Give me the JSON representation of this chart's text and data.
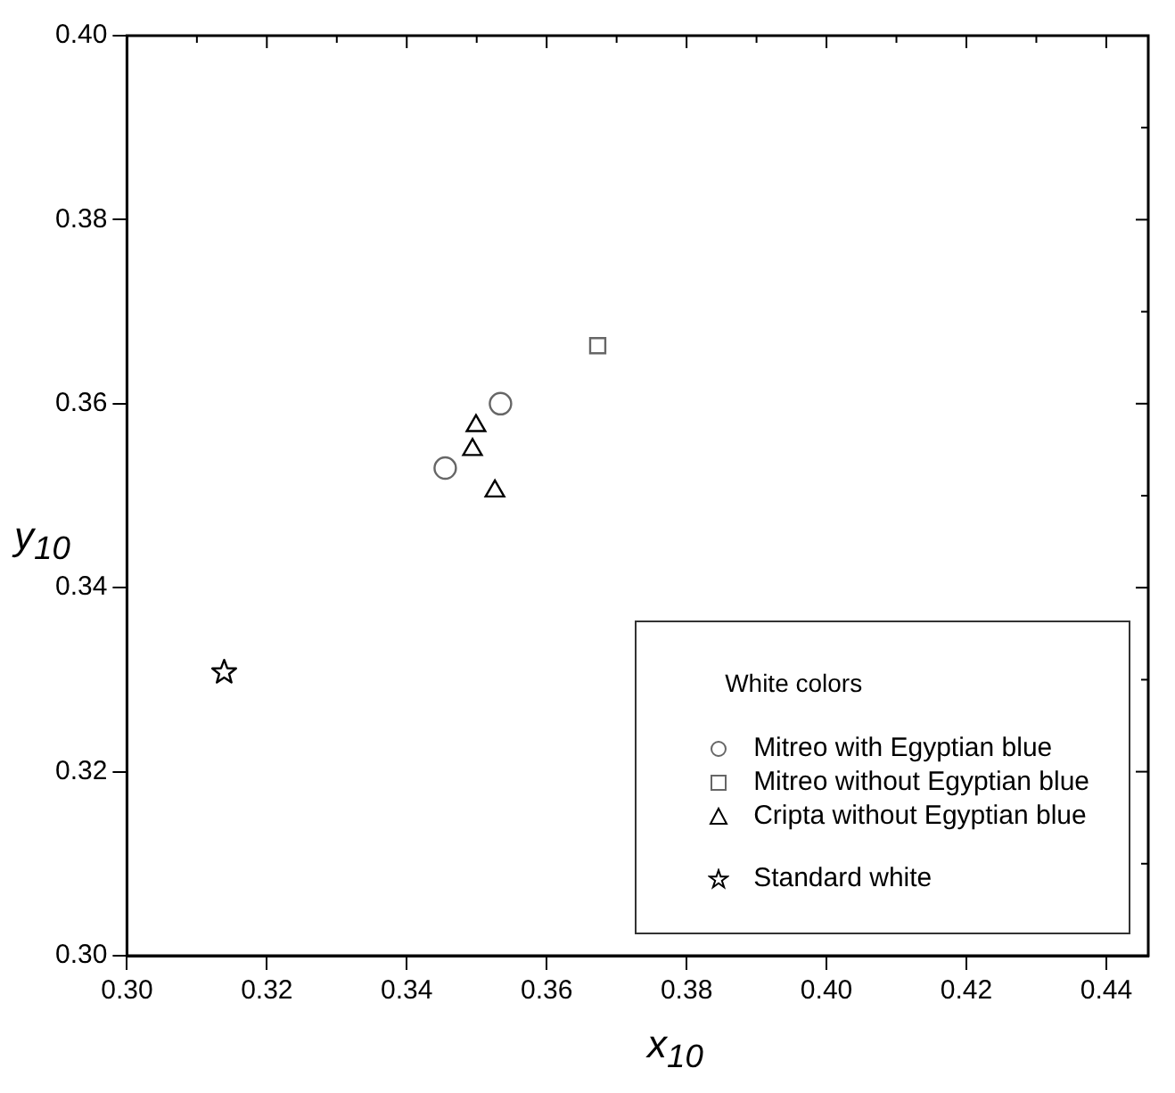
{
  "chart_data": {
    "type": "scatter",
    "xlabel": "x$_{10}$",
    "ylabel": "y$_{10}$",
    "legend_title": "White colors",
    "legend": "bottom right",
    "xlim": [
      0.3,
      0.446
    ],
    "ylim": [
      0.3,
      0.4
    ],
    "xticks": [
      {
        "value": 0.3,
        "label": "0.30"
      },
      {
        "value": 0.32,
        "label": "0.32"
      },
      {
        "value": 0.34,
        "label": "0.34"
      },
      {
        "value": 0.36,
        "label": "0.36"
      },
      {
        "value": 0.38,
        "label": "0.38"
      },
      {
        "value": 0.4,
        "label": "0.40"
      },
      {
        "value": 0.42,
        "label": "0.42"
      },
      {
        "value": 0.44,
        "label": "0.44"
      }
    ],
    "yticks": [
      {
        "value": 0.3,
        "label": "0.30"
      },
      {
        "value": 0.32,
        "label": "0.32"
      },
      {
        "value": 0.34,
        "label": "0.34"
      },
      {
        "value": 0.36,
        "label": "0.36"
      },
      {
        "value": 0.38,
        "label": "0.38"
      },
      {
        "value": 0.4,
        "label": "0.40"
      }
    ],
    "grid": false,
    "series": [
      {
        "name": "Mitreo with Egyptian blue",
        "color": "#666666",
        "marker": "circle",
        "x": [
          0.3455,
          0.3534
        ],
        "values": [
          0.353,
          0.36
        ]
      },
      {
        "name": "Mitreo without Egyptian blue",
        "color": "#666666",
        "marker": "square",
        "x": [
          0.3673
        ],
        "values": [
          0.3663
        ]
      },
      {
        "name": "Cripta without Egyptian blue",
        "color": "#000000",
        "marker": "triangle",
        "x": [
          0.3499,
          0.3494,
          0.3526
        ],
        "values": [
          0.3576,
          0.355,
          0.3505
        ]
      },
      {
        "name": "Standard white",
        "color": "#000000",
        "marker": "star",
        "x": [
          0.3139
        ],
        "values": [
          0.3308
        ]
      }
    ]
  }
}
